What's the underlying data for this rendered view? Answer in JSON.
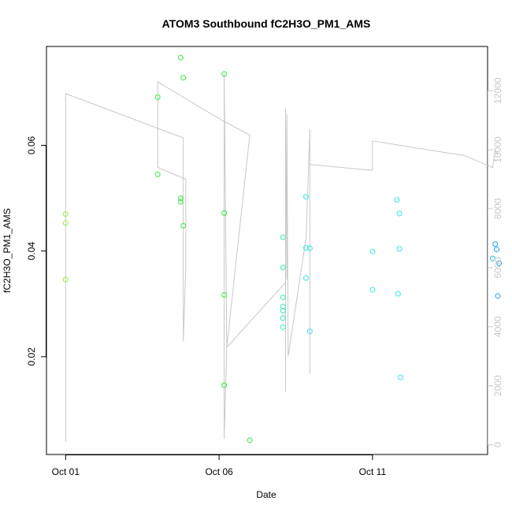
{
  "chart_data": {
    "type": "scatter",
    "title": "ATOM3 Southbound fC2H3O_PM1_AMS",
    "xlabel": "Date",
    "ylabel": "fC2H3O_PM1_AMS",
    "x_ticks": [
      {
        "label": "Oct 01",
        "value": "2019-10-01"
      },
      {
        "label": "Oct 06",
        "value": "2019-10-06"
      },
      {
        "label": "Oct 11",
        "value": "2019-10-11"
      }
    ],
    "y_ticks": [
      0.02,
      0.04,
      0.06
    ],
    "y_right_ticks": [
      0,
      2000,
      4000,
      6000,
      8000,
      10000,
      12000
    ],
    "xlim": [
      "2019-09-30T09:00",
      "2019-10-14T18:00"
    ],
    "ylim": [
      0.0015,
      0.0787
    ],
    "y_right_lim": [
      -330,
      13500
    ],
    "colors": {
      "yellowgreen": "#9aef41",
      "green": "#37ea41",
      "teal": "#36e8b3",
      "cyan": "#36e6e6",
      "skyblue": "#23bdee",
      "blue": "#1f9eee",
      "line": "#c8c8c8",
      "right_axis": "#c8c8c8"
    },
    "points": [
      {
        "x": "2019-10-01T00:00",
        "y": 0.047,
        "color": "yellowgreen"
      },
      {
        "x": "2019-10-01T00:00",
        "y": 0.0453,
        "color": "yellowgreen"
      },
      {
        "x": "2019-10-01T00:00",
        "y": 0.0346,
        "color": "yellowgreen"
      },
      {
        "x": "2019-10-04T00:00",
        "y": 0.0691,
        "color": "green"
      },
      {
        "x": "2019-10-04T00:00",
        "y": 0.0545,
        "color": "green"
      },
      {
        "x": "2019-10-04T18:00",
        "y": 0.0766,
        "color": "green"
      },
      {
        "x": "2019-10-04T18:00",
        "y": 0.05,
        "color": "green"
      },
      {
        "x": "2019-10-04T18:00",
        "y": 0.0493,
        "color": "green"
      },
      {
        "x": "2019-10-04T20:00",
        "y": 0.0728,
        "color": "green"
      },
      {
        "x": "2019-10-04T20:00",
        "y": 0.0448,
        "color": "green"
      },
      {
        "x": "2019-10-06T04:00",
        "y": 0.0735,
        "color": "green"
      },
      {
        "x": "2019-10-06T04:00",
        "y": 0.0472,
        "color": "green"
      },
      {
        "x": "2019-10-06T04:00",
        "y": 0.0317,
        "color": "green"
      },
      {
        "x": "2019-10-06T04:00",
        "y": 0.0146,
        "color": "green"
      },
      {
        "x": "2019-10-07T00:00",
        "y": 0.0042,
        "color": "green"
      },
      {
        "x": "2019-10-08T02:00",
        "y": 0.0426,
        "color": "teal"
      },
      {
        "x": "2019-10-08T02:00",
        "y": 0.0369,
        "color": "teal"
      },
      {
        "x": "2019-10-08T02:00",
        "y": 0.0312,
        "color": "teal"
      },
      {
        "x": "2019-10-08T02:00",
        "y": 0.0295,
        "color": "teal"
      },
      {
        "x": "2019-10-08T02:00",
        "y": 0.0287,
        "color": "teal"
      },
      {
        "x": "2019-10-08T02:00",
        "y": 0.0273,
        "color": "teal"
      },
      {
        "x": "2019-10-08T02:00",
        "y": 0.0256,
        "color": "teal"
      },
      {
        "x": "2019-10-08T20:00",
        "y": 0.0503,
        "color": "cyan"
      },
      {
        "x": "2019-10-08T20:00",
        "y": 0.0406,
        "color": "cyan"
      },
      {
        "x": "2019-10-08T20:00",
        "y": 0.0349,
        "color": "cyan"
      },
      {
        "x": "2019-10-08T23:00",
        "y": 0.0405,
        "color": "cyan"
      },
      {
        "x": "2019-10-08T23:00",
        "y": 0.0248,
        "color": "cyan"
      },
      {
        "x": "2019-10-11T00:00",
        "y": 0.0399,
        "color": "cyan"
      },
      {
        "x": "2019-10-11T00:00",
        "y": 0.0327,
        "color": "cyan"
      },
      {
        "x": "2019-10-11T19:00",
        "y": 0.0497,
        "color": "cyan"
      },
      {
        "x": "2019-10-11T20:00",
        "y": 0.0319,
        "color": "cyan"
      },
      {
        "x": "2019-10-11T21:00",
        "y": 0.0471,
        "color": "cyan"
      },
      {
        "x": "2019-10-11T21:00",
        "y": 0.0404,
        "color": "cyan"
      },
      {
        "x": "2019-10-11T22:00",
        "y": 0.0161,
        "color": "cyan"
      },
      {
        "x": "2019-10-14T22:00",
        "y": 0.0386,
        "color": "skyblue"
      },
      {
        "x": "2019-10-15T00:00",
        "y": 0.0413,
        "color": "blue"
      },
      {
        "x": "2019-10-15T01:00",
        "y": 0.0403,
        "color": "blue"
      },
      {
        "x": "2019-10-15T03:00",
        "y": 0.0377,
        "color": "blue"
      },
      {
        "x": "2019-10-15T02:00",
        "y": 0.0315,
        "color": "blue"
      }
    ],
    "line_series": {
      "axis": "right",
      "points": [
        {
          "x": "2019-10-01T00:00",
          "y": 100
        },
        {
          "x": "2019-10-01T00:00",
          "y": 11900
        },
        {
          "x": "2019-10-04T20:00",
          "y": 10400
        },
        {
          "x": "2019-10-04T20:00",
          "y": 3500
        },
        {
          "x": "2019-10-04T22:00",
          "y": 6000
        },
        {
          "x": "2019-10-04T22:00",
          "y": 9000
        },
        {
          "x": "2019-10-04T00:00",
          "y": 9400
        },
        {
          "x": "2019-10-04T00:00",
          "y": 12300
        },
        {
          "x": "2019-10-06T02:00",
          "y": 11000
        },
        {
          "x": "2019-10-07T00:00",
          "y": 10500
        },
        {
          "x": "2019-10-06T06:00",
          "y": 3300
        },
        {
          "x": "2019-10-06T04:00",
          "y": 200
        },
        {
          "x": "2019-10-06T04:00",
          "y": 12600
        },
        {
          "x": "2019-10-06T06:00",
          "y": 3300
        },
        {
          "x": "2019-10-08T04:00",
          "y": 5500
        },
        {
          "x": "2019-10-08T04:00",
          "y": 1800
        },
        {
          "x": "2019-10-08T04:00",
          "y": 11400
        },
        {
          "x": "2019-10-08T05:00",
          "y": 5600
        },
        {
          "x": "2019-10-08T05:00",
          "y": 11200
        },
        {
          "x": "2019-10-08T06:00",
          "y": 3000
        },
        {
          "x": "2019-10-08T20:00",
          "y": 7000
        },
        {
          "x": "2019-10-08T23:00",
          "y": 10700
        },
        {
          "x": "2019-10-08T23:00",
          "y": 2400
        },
        {
          "x": "2019-10-08T23:00",
          "y": 9500
        },
        {
          "x": "2019-10-11T00:00",
          "y": 9300
        },
        {
          "x": "2019-10-11T00:00",
          "y": 10300
        },
        {
          "x": "2019-10-14T00:00",
          "y": 9800
        },
        {
          "x": "2019-10-14T22:00",
          "y": 9400
        },
        {
          "x": "2019-10-15T00:00",
          "y": 10000
        },
        {
          "x": "2019-10-15T02:00",
          "y": 9800
        }
      ]
    },
    "grid": false,
    "legend": "none"
  }
}
